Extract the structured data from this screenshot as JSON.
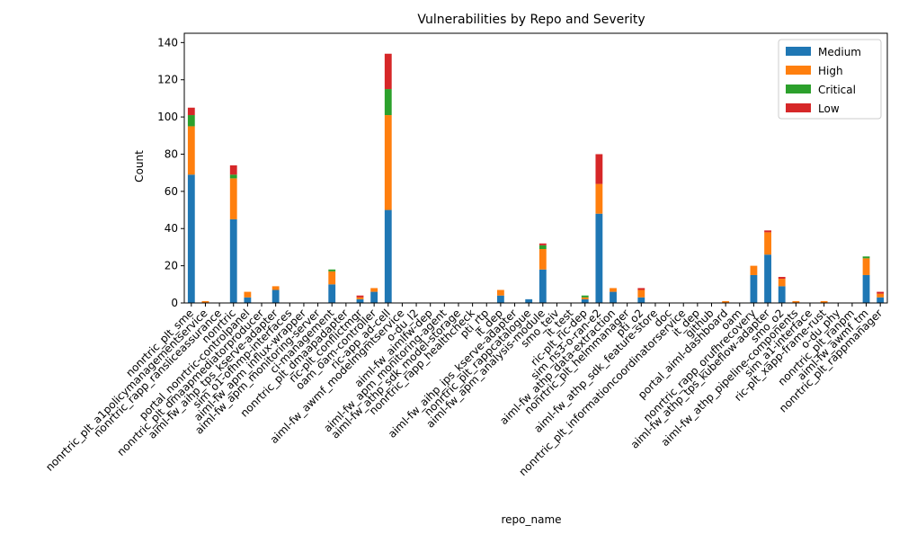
{
  "chart_data": {
    "type": "bar",
    "stacked": true,
    "title": "Vulnerabilities by Repo and Severity",
    "xlabel": "repo_name",
    "ylabel": "Count",
    "ylim": [
      0,
      145
    ],
    "yticks": [
      0,
      20,
      40,
      60,
      80,
      100,
      120,
      140
    ],
    "grid": false,
    "legend_position": "top-right",
    "categories": [
      "nonrtric_plt_sme",
      "nonrtric_plt_a1policymanagementservice",
      "nonrtric_rapp_ransliceassurance",
      "nonrtric",
      "portal_nonrtric-controlpanel",
      "nonrtric_plt_dmaapmediatorproducer",
      "aiml-fw_aihp_tps_kserve-adapter",
      "sim_o1-ofhmp-interfaces",
      "aiml-fw_apm_influx-wrapper",
      "aiml-fw_apm_monitoring-server",
      "ci-management",
      "nonrtric_plt_dmaapadapter",
      "ric-plt_conflictmgr",
      "oam_oam-controller",
      "ric-app_ad-cell",
      "aiml-fw_awmf_modelmgmtservice",
      "o-du_l2",
      "aiml-fw_aimlfw-dep",
      "aiml-fw_apm_monitoring-agent",
      "aiml-fw_athp_sdk_model-storage",
      "nonrtric_rapp_healthcheck",
      "pti_rtp",
      "it_dep",
      "aiml-fw_aihp_ips_kserve-adapter",
      "nonrtric_plt_rappcatalogue",
      "aiml-fw_apm_analysis-module",
      "smo_teiv",
      "it_test",
      "ric-plt_ric-dep",
      "sim_ns3-o-ran-e2",
      "aiml-fw_athp_data-extraction",
      "nonrtric_plt_helmmanager",
      "pti_o2",
      "aiml-fw_athp_sdk_feature-store",
      "doc",
      "nonrtric_plt_informationcoordinatorservice",
      "it_dep",
      "github",
      "portal_aiml-dashboard",
      "oam",
      "nonrtric_rapp_orufhrecovery",
      "aiml-fw_athp_tps_kubeflow-adapter",
      "smo_o2",
      "aiml-fw_athp_pipeline-components",
      "sim_a1-interface",
      "ric-plt_xapp-frame-rust",
      "o-du_phy",
      "nonrtric_plt_ranpm",
      "aiml-fw_awmf_tm",
      "nonrtric_plt_rappmanager"
    ],
    "series": [
      {
        "name": "Medium",
        "color": "#1f77b4",
        "values": [
          69,
          0,
          0,
          45,
          3,
          0,
          7,
          0,
          0,
          0,
          10,
          0,
          2,
          6,
          50,
          0,
          0,
          0,
          0,
          0,
          0,
          0,
          4,
          0,
          2,
          18,
          0,
          0,
          2,
          48,
          6,
          0,
          3,
          0,
          0,
          0,
          0,
          0,
          0,
          0,
          15,
          26,
          9,
          0,
          0,
          0,
          0,
          0,
          15,
          3
        ]
      },
      {
        "name": "High",
        "color": "#ff7f0e",
        "values": [
          26,
          1,
          0,
          22,
          3,
          0,
          2,
          0,
          0,
          0,
          7,
          0,
          1,
          2,
          51,
          0,
          0,
          0,
          0,
          0,
          0,
          0,
          3,
          0,
          0,
          11,
          0,
          0,
          1,
          16,
          2,
          0,
          4,
          0,
          0,
          0,
          0,
          0,
          1,
          0,
          5,
          12,
          4,
          1,
          0,
          1,
          0,
          0,
          9,
          2
        ]
      },
      {
        "name": "Critical",
        "color": "#2ca02c",
        "values": [
          6,
          0,
          0,
          2,
          0,
          0,
          0,
          0,
          0,
          0,
          1,
          0,
          0,
          0,
          14,
          0,
          0,
          0,
          0,
          0,
          0,
          0,
          0,
          0,
          0,
          2,
          0,
          0,
          1,
          0,
          0,
          0,
          0,
          0,
          0,
          0,
          0,
          0,
          0,
          0,
          0,
          0,
          0,
          0,
          0,
          0,
          0,
          0,
          1,
          0
        ]
      },
      {
        "name": "Low",
        "color": "#d62728",
        "values": [
          4,
          0,
          0,
          5,
          0,
          0,
          0,
          0,
          0,
          0,
          0,
          0,
          1,
          0,
          19,
          0,
          0,
          0,
          0,
          0,
          0,
          0,
          0,
          0,
          0,
          1,
          0,
          0,
          0,
          16,
          0,
          0,
          1,
          0,
          0,
          0,
          0,
          0,
          0,
          0,
          0,
          1,
          1,
          0,
          0,
          0,
          0,
          0,
          0,
          1
        ]
      }
    ]
  }
}
